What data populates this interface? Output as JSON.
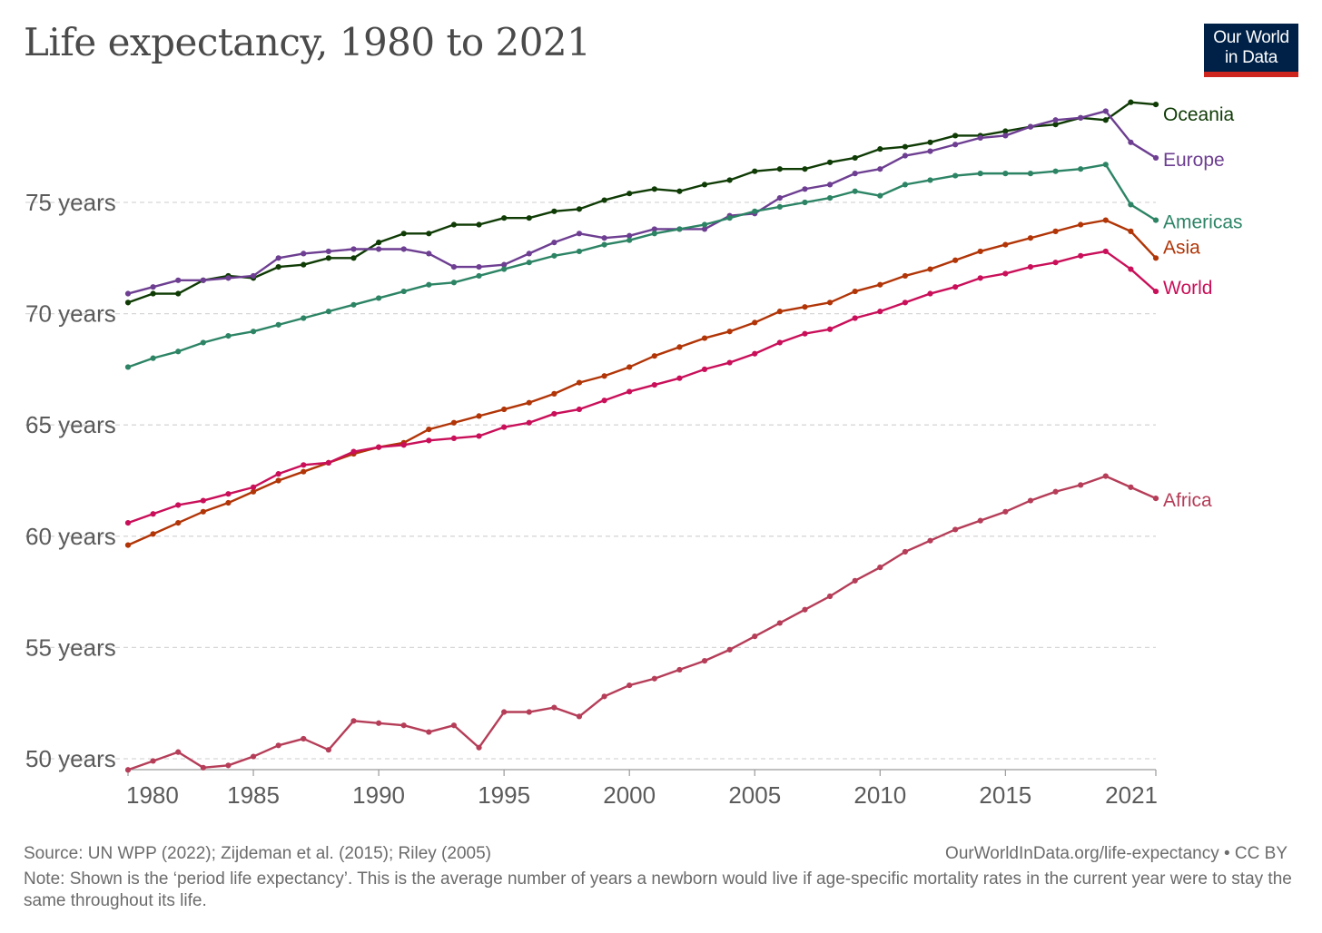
{
  "header": {
    "title": "Life expectancy, 1980 to 2021",
    "logo_line1": "Our World",
    "logo_line2": "in Data"
  },
  "footer": {
    "source": "Source: UN WPP (2022); Zijdeman et al. (2015); Riley (2005)",
    "url": "OurWorldInData.org/life-expectancy • CC BY",
    "note": "Note: Shown is the ‘period life expectancy’. This is the average number of years a newborn would live if age-specific mortality rates in the current year were to stay the same throughout its life."
  },
  "chart_data": {
    "type": "line",
    "title": "Life expectancy, 1980 to 2021",
    "xlabel": "",
    "ylabel": "",
    "xlim": [
      1980,
      2021
    ],
    "ylim": [
      49.5,
      80
    ],
    "grid": true,
    "x_ticks": [
      1980,
      1985,
      1990,
      1995,
      2000,
      2005,
      2010,
      2015,
      2021
    ],
    "x_tick_labels": [
      "1980",
      "1985",
      "1990",
      "1995",
      "2000",
      "2005",
      "2010",
      "2015",
      "2021"
    ],
    "y_ticks": [
      50,
      55,
      60,
      65,
      70,
      75
    ],
    "y_tick_labels": [
      "50 years",
      "55 years",
      "60 years",
      "65 years",
      "70 years",
      "75 years"
    ],
    "legend": "labels at line ends (right)",
    "x": [
      1980,
      1981,
      1982,
      1983,
      1984,
      1985,
      1986,
      1987,
      1988,
      1989,
      1990,
      1991,
      1992,
      1993,
      1994,
      1995,
      1996,
      1997,
      1998,
      1999,
      2000,
      2001,
      2002,
      2003,
      2004,
      2005,
      2006,
      2007,
      2008,
      2009,
      2010,
      2011,
      2012,
      2013,
      2014,
      2015,
      2016,
      2017,
      2018,
      2019,
      2020,
      2021
    ],
    "series": [
      {
        "name": "Oceania",
        "color": "#0f3b05",
        "values": [
          70.5,
          70.9,
          70.9,
          71.5,
          71.7,
          71.6,
          72.1,
          72.2,
          72.5,
          72.5,
          73.2,
          73.6,
          73.6,
          74.0,
          74.0,
          74.3,
          74.3,
          74.6,
          74.7,
          75.1,
          75.4,
          75.6,
          75.5,
          75.8,
          76.0,
          76.4,
          76.5,
          76.5,
          76.8,
          77.0,
          77.4,
          77.5,
          77.7,
          78.0,
          78.0,
          78.2,
          78.4,
          78.5,
          78.8,
          78.7,
          79.5,
          79.4
        ]
      },
      {
        "name": "Europe",
        "color": "#6d3e91",
        "values": [
          70.9,
          71.2,
          71.5,
          71.5,
          71.6,
          71.7,
          72.5,
          72.7,
          72.8,
          72.9,
          72.9,
          72.9,
          72.7,
          72.1,
          72.1,
          72.2,
          72.7,
          73.2,
          73.6,
          73.4,
          73.5,
          73.8,
          73.8,
          73.8,
          74.4,
          74.5,
          75.2,
          75.6,
          75.8,
          76.3,
          76.5,
          77.1,
          77.3,
          77.6,
          77.9,
          78.0,
          78.4,
          78.7,
          78.8,
          79.1,
          77.7,
          77.0
        ]
      },
      {
        "name": "Americas",
        "color": "#2c8465",
        "values": [
          67.6,
          68.0,
          68.3,
          68.7,
          69.0,
          69.2,
          69.5,
          69.8,
          70.1,
          70.4,
          70.7,
          71.0,
          71.3,
          71.4,
          71.7,
          72.0,
          72.3,
          72.6,
          72.8,
          73.1,
          73.3,
          73.6,
          73.8,
          74.0,
          74.3,
          74.6,
          74.8,
          75.0,
          75.2,
          75.5,
          75.3,
          75.8,
          76.0,
          76.2,
          76.3,
          76.3,
          76.3,
          76.4,
          76.5,
          76.7,
          74.9,
          74.2
        ]
      },
      {
        "name": "Asia",
        "color": "#b13507",
        "values": [
          59.6,
          60.1,
          60.6,
          61.1,
          61.5,
          62.0,
          62.5,
          62.9,
          63.3,
          63.7,
          64.0,
          64.2,
          64.8,
          65.1,
          65.4,
          65.7,
          66.0,
          66.4,
          66.9,
          67.2,
          67.6,
          68.1,
          68.5,
          68.9,
          69.2,
          69.6,
          70.1,
          70.3,
          70.5,
          71.0,
          71.3,
          71.7,
          72.0,
          72.4,
          72.8,
          73.1,
          73.4,
          73.7,
          74.0,
          74.2,
          73.7,
          72.5
        ]
      },
      {
        "name": "World",
        "color": "#c90f59",
        "values": [
          60.6,
          61.0,
          61.4,
          61.6,
          61.9,
          62.2,
          62.8,
          63.2,
          63.3,
          63.8,
          64.0,
          64.1,
          64.3,
          64.4,
          64.5,
          64.9,
          65.1,
          65.5,
          65.7,
          66.1,
          66.5,
          66.8,
          67.1,
          67.5,
          67.8,
          68.2,
          68.7,
          69.1,
          69.3,
          69.8,
          70.1,
          70.5,
          70.9,
          71.2,
          71.6,
          71.8,
          72.1,
          72.3,
          72.6,
          72.8,
          72.0,
          71.0
        ]
      },
      {
        "name": "Africa",
        "color": "#b53d58",
        "values": [
          49.5,
          49.9,
          50.3,
          49.6,
          49.7,
          50.1,
          50.6,
          50.9,
          50.4,
          51.7,
          51.6,
          51.5,
          51.2,
          51.5,
          50.5,
          52.1,
          52.1,
          52.3,
          51.9,
          52.8,
          53.3,
          53.6,
          54.0,
          54.4,
          54.9,
          55.5,
          56.1,
          56.7,
          57.3,
          58.0,
          58.6,
          59.3,
          59.8,
          60.3,
          60.7,
          61.1,
          61.6,
          62.0,
          62.3,
          62.7,
          62.2,
          61.7
        ]
      }
    ]
  }
}
